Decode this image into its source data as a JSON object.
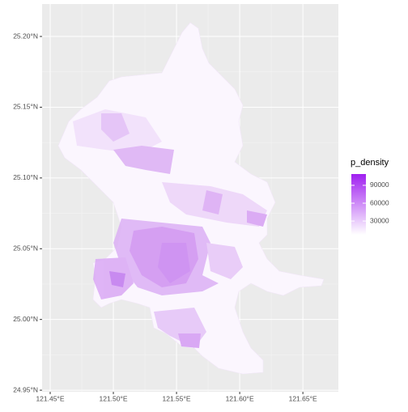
{
  "chart_data": {
    "type": "map",
    "xlim": [
      121.4436,
      121.6781
    ],
    "ylim": [
      24.9489,
      25.2229
    ],
    "xticks": [
      {
        "value": 121.45,
        "label": "121.45°E"
      },
      {
        "value": 121.5,
        "label": "121.50°E"
      },
      {
        "value": 121.55,
        "label": "121.55°E"
      },
      {
        "value": 121.6,
        "label": "121.60°E"
      },
      {
        "value": 121.65,
        "label": "121.65°E"
      }
    ],
    "yticks": [
      {
        "value": 24.95,
        "label": "24.95°N"
      },
      {
        "value": 25.0,
        "label": "25.00°N"
      },
      {
        "value": 25.05,
        "label": "25.05°N"
      },
      {
        "value": 25.1,
        "label": "25.10°N"
      },
      {
        "value": 25.15,
        "label": "25.15°N"
      },
      {
        "value": 25.2,
        "label": "25.20°N"
      }
    ],
    "grid": true,
    "legend_title": "p_density",
    "legend_lim": [
      7000,
      109000
    ],
    "legend_ticks": [
      30000,
      60000,
      90000
    ],
    "colors": [
      "#ffffff",
      "#a020f0"
    ]
  }
}
